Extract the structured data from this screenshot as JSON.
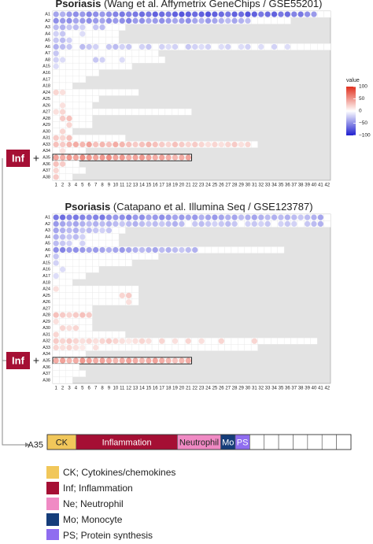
{
  "chart_data": [
    {
      "type": "dot-heatmap",
      "title": "Psoriasis",
      "subtitle": "(Wang et al. Affymetrix GeneChips / GSE55201)",
      "rows": [
        "A1",
        "A2",
        "A3",
        "A4",
        "A5",
        "A6",
        "A7",
        "A8",
        "A15",
        "A16",
        "A17",
        "A18",
        "A24",
        "A25",
        "A26",
        "A27",
        "A28",
        "A29",
        "A30",
        "A31",
        "A33",
        "A34",
        "A35",
        "A36",
        "A37",
        "A38"
      ],
      "columns": [
        1,
        2,
        3,
        4,
        5,
        6,
        7,
        8,
        9,
        10,
        11,
        12,
        13,
        14,
        15,
        16,
        17,
        18,
        19,
        20,
        21,
        22,
        23,
        24,
        25,
        26,
        27,
        28,
        29,
        30,
        31,
        32,
        33,
        34,
        35,
        36,
        37,
        38,
        39,
        40,
        41,
        42
      ],
      "values": [
        [
          -40,
          -35,
          -45,
          -50,
          -45,
          -55,
          -50,
          -45,
          -50,
          -55,
          -60,
          -55,
          -60,
          -65,
          -60,
          -70,
          -65,
          -60,
          -70,
          -75,
          -70,
          -65,
          -70,
          -75,
          -70,
          -65,
          -60,
          -70,
          -65,
          -75,
          -70,
          -60,
          -65,
          -70,
          -60,
          -65,
          -55,
          -60,
          -50,
          -45,
          null,
          null
        ],
        [
          -50,
          -45,
          -50,
          -40,
          -45,
          -50,
          -45,
          -40,
          -50,
          -45,
          -50,
          -55,
          -45,
          -50,
          -40,
          -45,
          -50,
          -45,
          -40,
          -45,
          -50,
          -40,
          -35,
          -45,
          -40,
          -35,
          -30,
          -40,
          -35,
          -30,
          null,
          null,
          null,
          null,
          null,
          null
        ],
        [
          -30,
          -35,
          -25,
          -30,
          -20,
          null,
          -25,
          -30,
          null,
          null,
          null
        ],
        [
          -20,
          -25,
          null,
          null,
          -15,
          null,
          null,
          null,
          null,
          null
        ],
        [
          -25,
          -30,
          -20,
          null,
          null,
          null,
          null,
          null,
          null,
          null
        ],
        [
          -35,
          -30,
          -25,
          null,
          -30,
          -25,
          -20,
          null,
          -25,
          -30,
          -20,
          -25,
          null,
          -20,
          -25,
          null,
          -20,
          -15,
          -20,
          null,
          -25,
          -20,
          -15,
          -20,
          null,
          -15,
          -20,
          null,
          -15,
          -20,
          null,
          -15,
          null,
          -20,
          null,
          -15,
          null,
          null,
          null,
          null,
          null,
          null
        ],
        [
          -25,
          null,
          null,
          null,
          null,
          null,
          null,
          null,
          null,
          null,
          null,
          null,
          null,
          null,
          null,
          null
        ],
        [
          -20,
          -15,
          null,
          null,
          null,
          null,
          -25,
          -20,
          null,
          null,
          -15,
          null,
          null,
          null,
          null,
          null,
          null
        ],
        [
          -15,
          null,
          null,
          null,
          null,
          null,
          null,
          null,
          null,
          null,
          null,
          null
        ],
        [
          null,
          null,
          null,
          null,
          null,
          null,
          null
        ],
        [
          null,
          null,
          null,
          null,
          null
        ],
        [
          null,
          null,
          null
        ],
        [
          20,
          15,
          null,
          null,
          null,
          null,
          null,
          null,
          null,
          null,
          null,
          null,
          null
        ],
        [
          null,
          null,
          null,
          null,
          null,
          null,
          null
        ],
        [
          null,
          15,
          null,
          null,
          null,
          null
        ],
        [
          15,
          20,
          null,
          null,
          null,
          null,
          null,
          null,
          null,
          null,
          null,
          null,
          null,
          null,
          null,
          null,
          null,
          null,
          null,
          null,
          null
        ],
        [
          null,
          25,
          30,
          null,
          null,
          null
        ],
        [
          null,
          null,
          20,
          null,
          null,
          null
        ],
        [
          null,
          20,
          null
        ],
        [
          25,
          20,
          30,
          null,
          null,
          null,
          null,
          null,
          null,
          null,
          null
        ],
        [
          30,
          25,
          35,
          40,
          35,
          45,
          30,
          35,
          30,
          40,
          35,
          30,
          25,
          30,
          35,
          30,
          25,
          20,
          30,
          25,
          20,
          25,
          20,
          15,
          20,
          15,
          20,
          25,
          15,
          20,
          null
        ],
        [
          null,
          15,
          null,
          null,
          null
        ],
        [
          45,
          40,
          50,
          45,
          55,
          50,
          45,
          50,
          55,
          45,
          50,
          40,
          45,
          50,
          45,
          40,
          45,
          40,
          35,
          40,
          45
        ],
        [
          30,
          25,
          null,
          null
        ],
        [
          20,
          null,
          null,
          null,
          null
        ],
        [
          25,
          null,
          null
        ]
      ],
      "clim": [
        -100,
        100
      ],
      "colorscale": [
        "#1f1fd0",
        "#ffffff",
        "#e0301e"
      ],
      "colorbar": {
        "title": "value",
        "ticks": [
          100,
          50,
          0,
          {
            "value": -50,
            "label": "−50"
          },
          {
            "value": -100,
            "label": "−100"
          }
        ]
      }
    },
    {
      "type": "dot-heatmap",
      "title": "Psoriasis",
      "subtitle": "(Catapano et al. Illumina Seq / GSE123787)",
      "rows": [
        "A1",
        "A2",
        "A3",
        "A4",
        "A5",
        "A6",
        "A7",
        "A15",
        "A16",
        "A17",
        "A18",
        "A24",
        "A25",
        "A26",
        "A27",
        "A28",
        "A29",
        "A30",
        "A31",
        "A32",
        "A33",
        "A34",
        "A35",
        "A36",
        "A37",
        "A38"
      ],
      "columns": [
        1,
        2,
        3,
        4,
        5,
        6,
        7,
        8,
        9,
        10,
        11,
        12,
        13,
        14,
        15,
        16,
        17,
        18,
        19,
        20,
        21,
        22,
        23,
        24,
        25,
        26,
        27,
        28,
        29,
        30,
        31,
        32,
        33,
        34,
        35,
        36,
        37,
        38,
        39,
        40,
        41,
        42
      ],
      "values": [
        [
          -60,
          -65,
          -55,
          -60,
          -55,
          -50,
          -55,
          -60,
          -50,
          -45,
          -50,
          -55,
          -45,
          -50,
          -40,
          -45,
          -50,
          -45,
          -40,
          -45,
          -40,
          -45,
          -35,
          -40,
          -45,
          -40,
          -35,
          -40,
          -30,
          -35,
          -40,
          -35,
          -30,
          -35,
          -30,
          -35,
          -30,
          -25,
          -30,
          -35,
          -40,
          null
        ],
        [
          -45,
          -40,
          -35,
          -40,
          -35,
          -30,
          -35,
          -30,
          -35,
          -30,
          -25,
          -30,
          -35,
          -30,
          -25,
          -30,
          -25,
          -30,
          -35,
          -30,
          null,
          -25,
          -30,
          -25,
          -20,
          -25,
          -30,
          -25,
          null,
          -20,
          -25,
          -20,
          -25,
          null,
          -20,
          -25,
          -20,
          null,
          -25,
          -30,
          -35,
          null
        ],
        [
          -40,
          -35,
          -30,
          -35,
          -25,
          -30,
          -25,
          -20,
          -25,
          null,
          null
        ],
        [
          -35,
          -30,
          -25,
          -30,
          -20,
          null,
          null,
          null,
          null,
          null
        ],
        [
          -30,
          -25,
          -20,
          null,
          -20,
          null,
          null,
          null,
          null,
          null
        ],
        [
          -50,
          -55,
          -45,
          -50,
          -45,
          -40,
          -45,
          -40,
          -35,
          -40,
          -45,
          -40,
          -35,
          -30,
          -35,
          -40,
          -30,
          -35,
          -30,
          -25,
          -30,
          -35,
          null,
          null,
          null,
          null,
          null,
          null,
          null,
          null,
          null,
          null,
          null,
          null,
          null
        ],
        [
          -25,
          null,
          null,
          null,
          null,
          null,
          null,
          null,
          null,
          null,
          null,
          null,
          null,
          null,
          null,
          null
        ],
        [
          -20,
          null,
          null,
          null,
          null,
          null,
          null,
          null,
          null,
          null,
          null,
          null
        ],
        [
          null,
          -15,
          null,
          null,
          null,
          null,
          null
        ],
        [
          -15,
          null,
          null,
          null,
          null
        ],
        [
          null,
          null,
          null
        ],
        [
          15,
          null,
          null,
          null,
          null,
          null,
          null,
          null,
          null,
          null,
          null,
          null,
          null
        ],
        [
          null,
          null,
          null,
          null,
          null,
          null,
          null,
          null,
          null,
          null,
          20,
          25,
          null
        ],
        [
          null,
          null,
          null,
          null,
          null,
          null,
          null,
          null,
          null,
          null,
          null,
          15,
          null
        ],
        [
          null,
          null,
          null,
          null,
          null,
          null
        ],
        [
          30,
          25,
          20,
          25,
          30,
          25
        ],
        [
          15,
          null,
          null,
          null,
          null,
          null
        ],
        [
          null,
          20,
          15,
          20,
          null,
          null
        ],
        [
          20,
          null,
          null,
          null,
          null,
          null,
          null,
          null,
          null,
          null,
          null
        ],
        [
          25,
          20,
          25,
          20,
          15,
          20,
          15,
          20,
          25,
          20,
          15,
          10,
          15,
          20,
          15,
          null,
          20,
          null,
          15,
          null,
          20,
          null,
          15,
          null,
          null,
          20,
          null,
          null,
          null,
          null,
          20,
          null,
          null,
          null,
          null,
          null,
          null,
          null,
          null,
          null
        ],
        [
          20,
          15,
          20,
          15,
          10,
          null,
          15,
          null,
          null,
          null,
          null,
          null,
          null,
          null,
          null,
          null,
          null,
          null,
          null,
          null,
          null,
          null,
          null,
          null,
          null,
          null,
          null,
          null,
          null,
          null,
          null
        ],
        [
          null,
          null,
          null,
          null,
          null
        ],
        [
          40,
          45,
          35,
          40,
          50,
          45,
          40,
          45,
          40,
          35,
          40,
          45,
          40,
          35,
          40,
          45,
          40,
          35,
          30,
          35,
          40
        ],
        [
          null,
          null,
          null,
          null
        ],
        [
          null,
          null,
          null,
          null,
          null
        ],
        [
          null,
          null,
          null
        ]
      ],
      "clim": [
        -100,
        100
      ],
      "colorscale": [
        "#1f1fd0",
        "#ffffff",
        "#e0301e"
      ]
    }
  ],
  "badge": "Inf",
  "sign": "+",
  "module_map": {
    "label": "A35",
    "cells": 21,
    "segments": [
      {
        "text": "CK",
        "color": "#f1c75a",
        "cells": 2
      },
      {
        "text": "Inflammation",
        "color": "#a50f34",
        "cells": 7
      },
      {
        "text": "Neutrophil",
        "color": "#f08ac4",
        "cells": 3
      },
      {
        "text": "Mo",
        "color": "#153d7a",
        "cells": 1
      },
      {
        "text": "PS",
        "color": "#8f6df0",
        "cells": 1
      }
    ]
  },
  "key": [
    {
      "text": "CK; Cytokines/chemokines",
      "color": "#f1c75a"
    },
    {
      "text": "Inf; Inflammation",
      "color": "#a50f34"
    },
    {
      "text": "Ne; Neutrophil",
      "color": "#f08ac4"
    },
    {
      "text": "Mo; Monocyte",
      "color": "#153d7a"
    },
    {
      "text": "PS; Protein synthesis",
      "color": "#8f6df0"
    }
  ]
}
